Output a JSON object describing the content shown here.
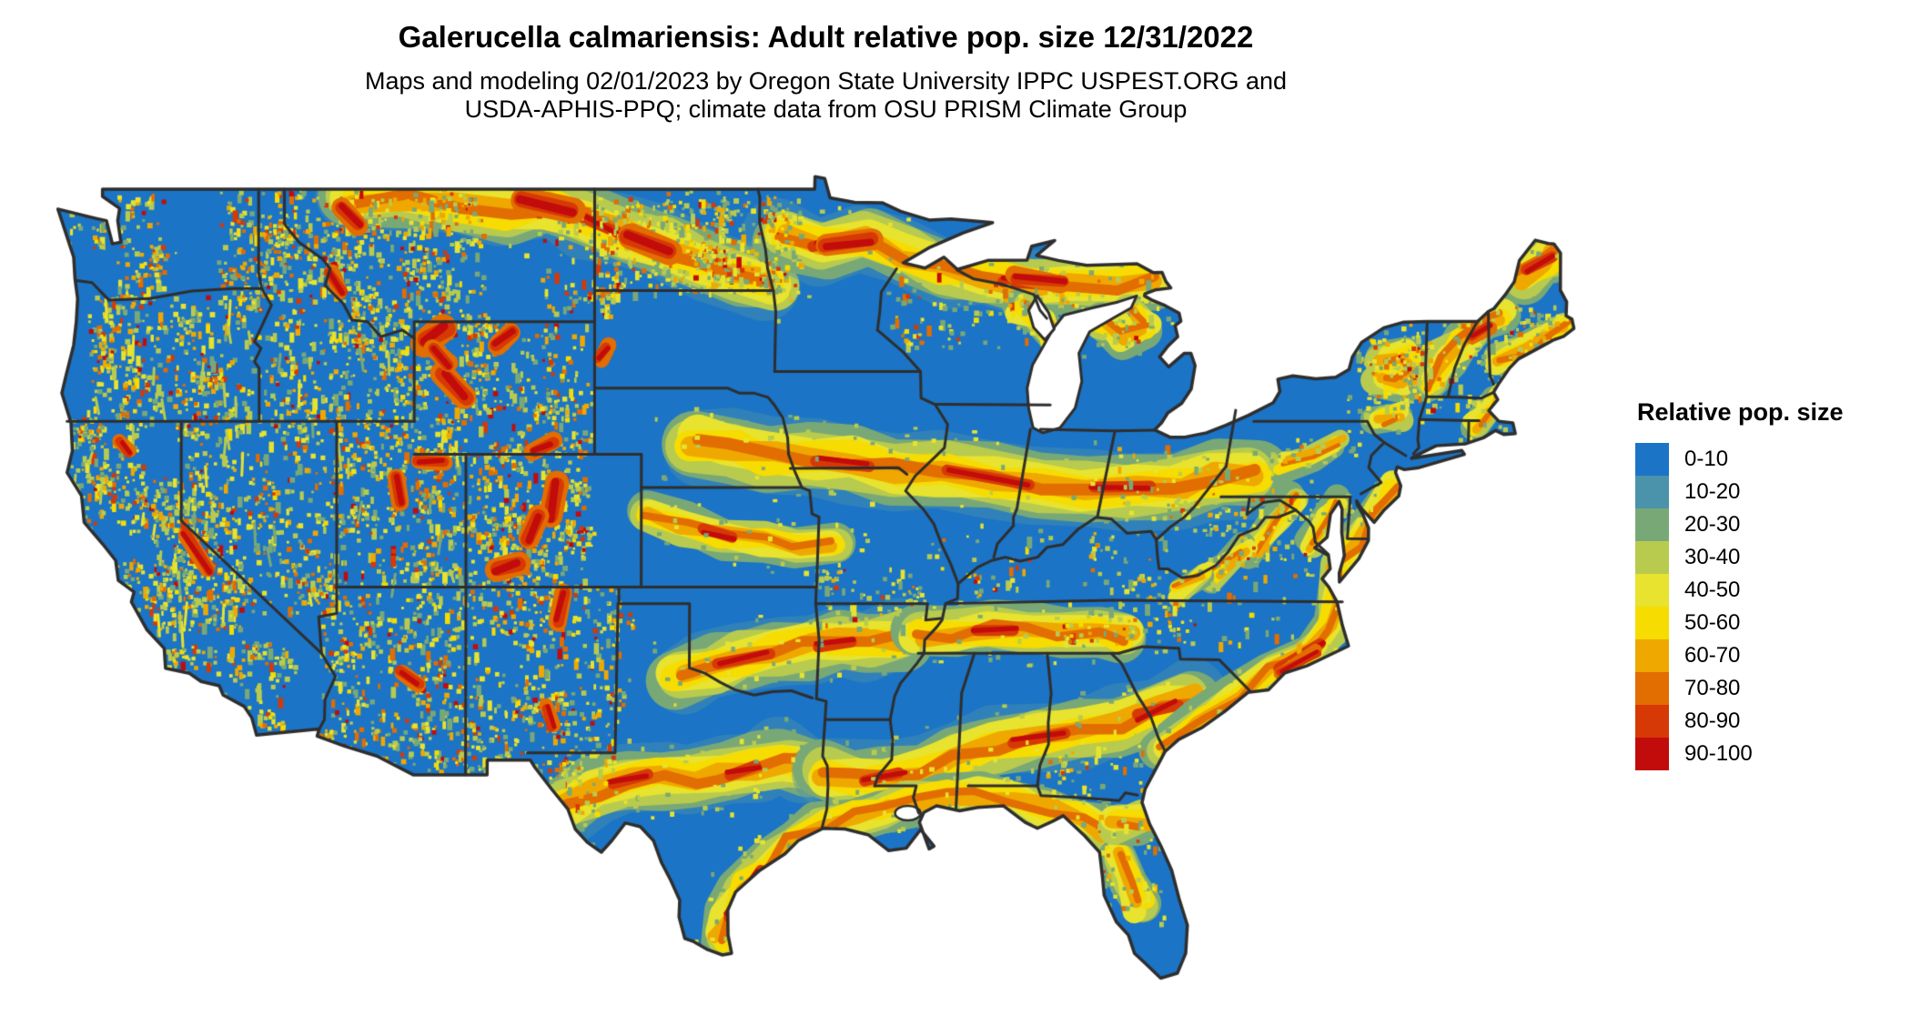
{
  "title": "Galerucella calmariensis: Adult relative pop. size 12/31/2022",
  "subtitle_line1": "Maps and modeling 02/01/2023 by Oregon State University IPPC USPEST.ORG and",
  "subtitle_line2": "USDA-APHIS-PPQ; climate data from OSU PRISM Climate Group",
  "map": {
    "region": "contiguous United States",
    "kind": "modeled raster map (relative population size by location)",
    "base_color": "#1B74C5",
    "state_border_color": "#2E2E2E",
    "water_color": "#FFFFFF"
  },
  "legend": {
    "title": "Relative pop. size",
    "items": [
      {
        "label": "0-10",
        "color": "#1B74C5"
      },
      {
        "label": "10-20",
        "color": "#4B92AB"
      },
      {
        "label": "20-30",
        "color": "#79A877"
      },
      {
        "label": "30-40",
        "color": "#B8CB4E"
      },
      {
        "label": "40-50",
        "color": "#E7E32E"
      },
      {
        "label": "50-60",
        "color": "#F6DC00"
      },
      {
        "label": "60-70",
        "color": "#EFA800"
      },
      {
        "label": "70-80",
        "color": "#E26D00"
      },
      {
        "label": "80-90",
        "color": "#D63905"
      },
      {
        "label": "90-100",
        "color": "#C20B0B"
      }
    ]
  },
  "chart_data": {
    "type": "heatmap",
    "title": "Galerucella calmariensis: Adult relative pop. size 12/31/2022",
    "legend_title": "Relative pop. size",
    "bins": [
      "0-10",
      "10-20",
      "20-30",
      "30-40",
      "40-50",
      "50-60",
      "60-70",
      "70-80",
      "80-90",
      "90-100"
    ],
    "bin_colors": [
      "#1B74C5",
      "#4B92AB",
      "#79A877",
      "#B8CB4E",
      "#E7E32E",
      "#F6DC00",
      "#EFA800",
      "#E26D00",
      "#D63905",
      "#C20B0B"
    ],
    "value_range": [
      0,
      100
    ],
    "notes": "Most of the continental US is in the 0-10 class (blue); high values (yellow-orange-red) form latitudinal bands across the northern plains, Iowa-Ohio, Kansas, Oklahoma-Tennessee, central Texas-Georgia, the Gulf and Atlantic coasts, and mountain-flank speckling throughout the West, northern Minnesota/Michigan, New England and northern Maine."
  }
}
